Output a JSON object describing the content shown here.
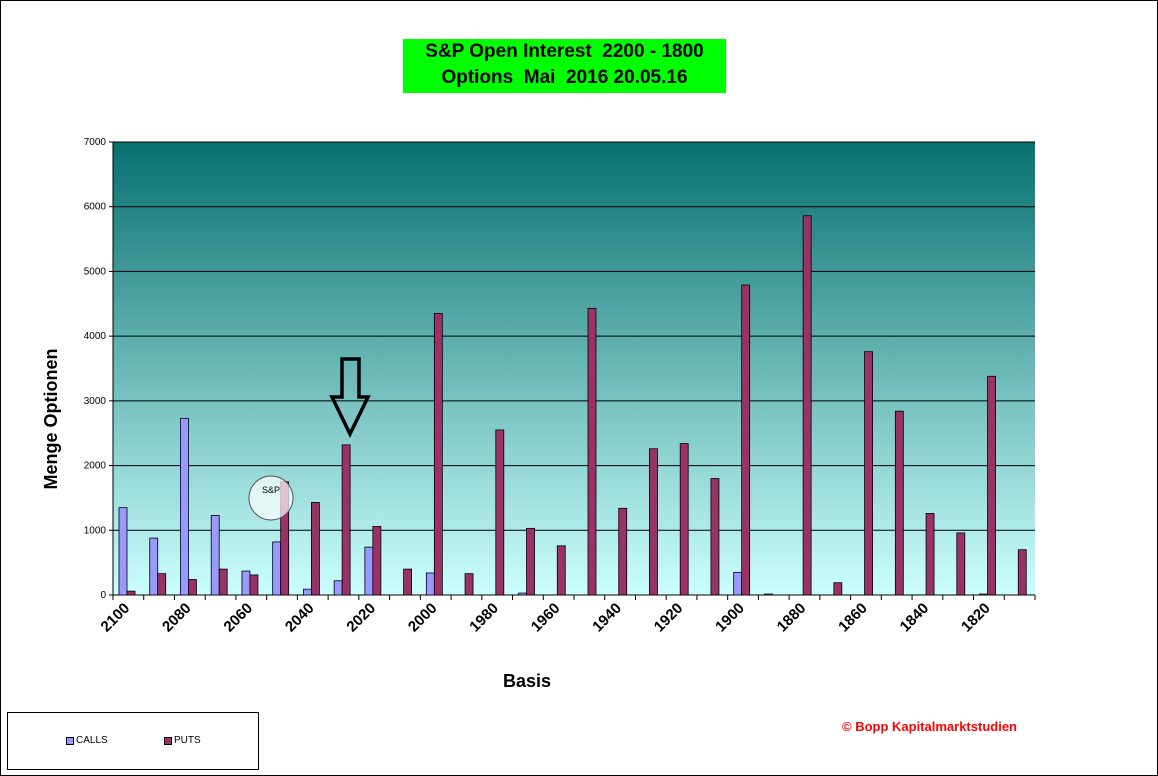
{
  "title": {
    "line1": "S&P Open Interest  2200 - 1800",
    "line2": "Options  Mai  2016 20.05.16"
  },
  "colors": {
    "calls": "#9999ff",
    "puts": "#993366",
    "plot_top": "#087070",
    "plot_bottom": "#ccffff",
    "title_bg": "#00ff00",
    "copyright": "#ff0000"
  },
  "chart_data": {
    "type": "bar",
    "title": "S&P Open Interest  2200 - 1800 Options  Mai  2016 20.05.16",
    "xlabel": "Basis",
    "ylabel": "Menge Optionen",
    "ylim": [
      0,
      7000
    ],
    "yticks": [
      0,
      1000,
      2000,
      3000,
      4000,
      5000,
      6000,
      7000
    ],
    "grid": true,
    "legend_position": "bottom-left",
    "categories": [
      "2100",
      "2090",
      "2080",
      "2070",
      "2060",
      "2050",
      "2040",
      "2030",
      "2020",
      "2010",
      "2000",
      "1990",
      "1980",
      "1970",
      "1960",
      "1950",
      "1940",
      "1930",
      "1920",
      "1910",
      "1900",
      "1890",
      "1880",
      "1870",
      "1860",
      "1850",
      "1840",
      "1830",
      "1820",
      "1810"
    ],
    "x_tick_labels": [
      "2100",
      "",
      "2080",
      "",
      "2060",
      "",
      "2040",
      "",
      "2020",
      "",
      "2000",
      "",
      "1980",
      "",
      "1960",
      "",
      "1940",
      "",
      "1920",
      "",
      "1900",
      "",
      "1880",
      "",
      "1860",
      "",
      "1840",
      "",
      "1820",
      ""
    ],
    "series": [
      {
        "name": "CALLS",
        "values": [
          1350,
          880,
          2730,
          1230,
          370,
          820,
          90,
          220,
          740,
          0,
          340,
          0,
          0,
          30,
          0,
          0,
          0,
          0,
          0,
          0,
          350,
          15,
          0,
          0,
          0,
          0,
          0,
          0,
          15,
          0
        ]
      },
      {
        "name": "PUTS",
        "values": [
          60,
          330,
          240,
          400,
          310,
          1750,
          1430,
          2320,
          1060,
          400,
          4350,
          330,
          2550,
          1030,
          760,
          4430,
          1340,
          2260,
          2340,
          1800,
          4790,
          0,
          5860,
          190,
          3760,
          2840,
          1260,
          960,
          3380,
          700
        ]
      }
    ],
    "annotations": [
      "S&P"
    ]
  },
  "legend": {
    "calls_label": "CALLS",
    "puts_label": "PUTS"
  },
  "copyright": "© Bopp Kapitalmarktstudien"
}
